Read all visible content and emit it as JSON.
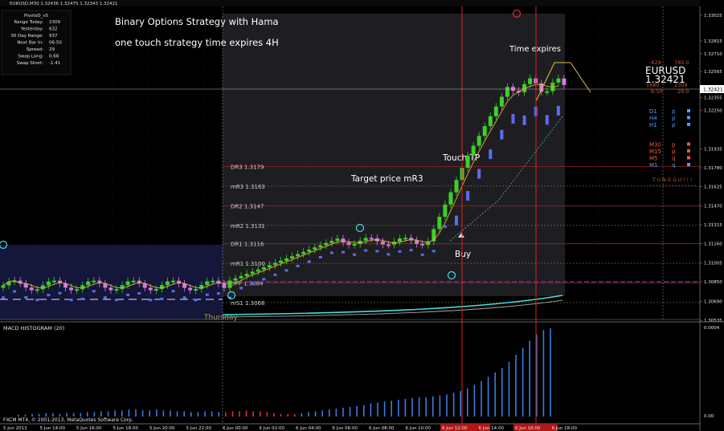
{
  "window": {
    "title": "EURUSD,M30  1.32436 1.32475 1.32343 1.32421"
  },
  "main_chart": {
    "annotations": {
      "title_line1": "Binary Options Strategy with Hama",
      "title_line2": "one touch strategy time expires 4H",
      "time_expires": "Time expires",
      "touch_tp": "Touch TP",
      "target_price": "Target price mR3",
      "buy": "Buy",
      "day_label": "Thursday"
    },
    "symbol": "EURUSD",
    "price": "1.32421",
    "stats_left": [
      "-629",
      "1680",
      "6:50"
    ],
    "stats_right": [
      "785.0",
      "2309",
      "29.0"
    ]
  },
  "pivots_panel": {
    "title": "PivotsD_v5",
    "rows": [
      {
        "label": "Range Today:",
        "value": "2309"
      },
      {
        "label": "Yesterday:",
        "value": "632"
      },
      {
        "label": "30 Day Range:",
        "value": "937"
      },
      {
        "label": "Next Bar In:",
        "value": "06:50"
      },
      {
        "label": "Spread:",
        "value": "29"
      },
      {
        "label": "Swap Long:",
        "value": "0.68"
      },
      {
        "label": "Swap Short:",
        "value": "-1.41"
      }
    ]
  },
  "timeframes": [
    {
      "name": "D1",
      "signal": "p",
      "color": "#4fa0ff"
    },
    {
      "name": "H4",
      "signal": "p",
      "color": "#4fa0ff"
    },
    {
      "name": "H1",
      "signal": "p",
      "color": "#4fa0ff"
    },
    {
      "name": "M30",
      "signal": "p",
      "color": "#ff5a3c"
    },
    {
      "name": "M15",
      "signal": "p",
      "color": "#ff5a3c"
    },
    {
      "name": "M5",
      "signal": "q",
      "color": "#ff5a3c"
    },
    {
      "name": "M1",
      "signal": "q",
      "color": "#4fa0ff"
    }
  ],
  "trend_status": "TUNGGU!!!",
  "pivot_levels": [
    {
      "name": "DR3",
      "value": "1.3179",
      "price": 1.3179
    },
    {
      "name": "mR3",
      "value": "1.3163",
      "price": 1.3163
    },
    {
      "name": "DR2",
      "value": "1.3147",
      "price": 1.3147
    },
    {
      "name": "mR2",
      "value": "1.3131",
      "price": 1.3131
    },
    {
      "name": "DR1",
      "value": "1.3116",
      "price": 1.3116
    },
    {
      "name": "mR1",
      "value": "1.3100",
      "price": 1.31
    },
    {
      "name": "DPP",
      "value": "1.3084",
      "price": 1.3084
    },
    {
      "name": "mS1",
      "value": "1.3068",
      "price": 1.3068
    }
  ],
  "price_axis": [
    "1.33025",
    "1.32815",
    "1.32710",
    "1.32565",
    "1.32421",
    "1.32355",
    "1.32250",
    "1.31935",
    "1.31780",
    "1.31625",
    "1.31470",
    "1.31315",
    "1.31160",
    "1.31005",
    "1.30850",
    "1.30690",
    "1.30535"
  ],
  "price_axis_values": [
    1.33025,
    1.32815,
    1.3271,
    1.32565,
    1.32421,
    1.32355,
    1.3225,
    1.31935,
    1.3178,
    1.31625,
    1.3147,
    1.31315,
    1.3116,
    1.31005,
    1.3085,
    1.3069,
    1.30535
  ],
  "macd": {
    "label": "MACD HISTOGRAM (20)",
    "axis_top": "0.0004",
    "axis_bottom": "0.00",
    "values": [
      0.2,
      0.2,
      0.3,
      0.3,
      0.4,
      0.4,
      0.3,
      0.4,
      0.4,
      0.4,
      0.5,
      0.5,
      0.6,
      0.6,
      0.7,
      0.7,
      0.8,
      0.8,
      0.7,
      0.7,
      0.8,
      0.7,
      0.7,
      0.6,
      0.6,
      0.5,
      0.5,
      0.6,
      0.6,
      0.5,
      -0.5,
      -0.6,
      -0.6,
      -0.7,
      -0.6,
      -0.6,
      -0.5,
      -0.4,
      -0.3,
      -0.3,
      -0.3,
      0.4,
      0.5,
      0.6,
      0.7,
      0.8,
      0.9,
      1.0,
      1.1,
      1.2,
      1.3,
      1.5,
      1.6,
      1.7,
      1.8,
      1.9,
      2.0,
      2.1,
      2.2,
      2.2,
      2.3,
      2.4,
      2.5,
      2.7,
      2.9,
      3.2,
      3.6,
      4.0,
      4.5,
      5.0,
      5.5,
      6.2,
      7.0,
      7.8,
      8.6,
      9.3,
      9.8,
      10.0
    ]
  },
  "time_axis": [
    "5 Jun 2013",
    "5 Jun 14:00",
    "5 Jun 16:00",
    "5 Jun 18:00",
    "5 Jun 20:00",
    "5 Jun 22:00",
    "6 Jun 00:00",
    "6 Jun 02:00",
    "6 Jun 04:00",
    "6 Jun 06:00",
    "6 Jun 08:00",
    "6 Jun 10:00",
    "6 Jun 12:00",
    "6 Jun 14:00",
    "6 Jun 16:00",
    "6 Jun 18:00"
  ],
  "copyright": "FXCM MT4, © 2001-2013, MetaQuotes Software Corp."
}
